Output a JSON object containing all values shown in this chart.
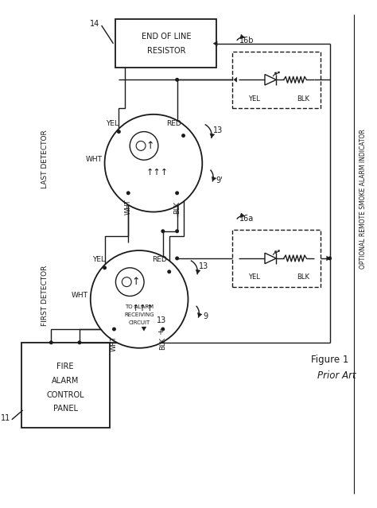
{
  "bg_color": "#ffffff",
  "line_color": "#1a1a1a",
  "figure_label": "Figure 1",
  "figure_sublabel": "Prior Art",
  "optional_label": "OPTIONAL REMOTE SMOKE ALARM INDICATOR"
}
